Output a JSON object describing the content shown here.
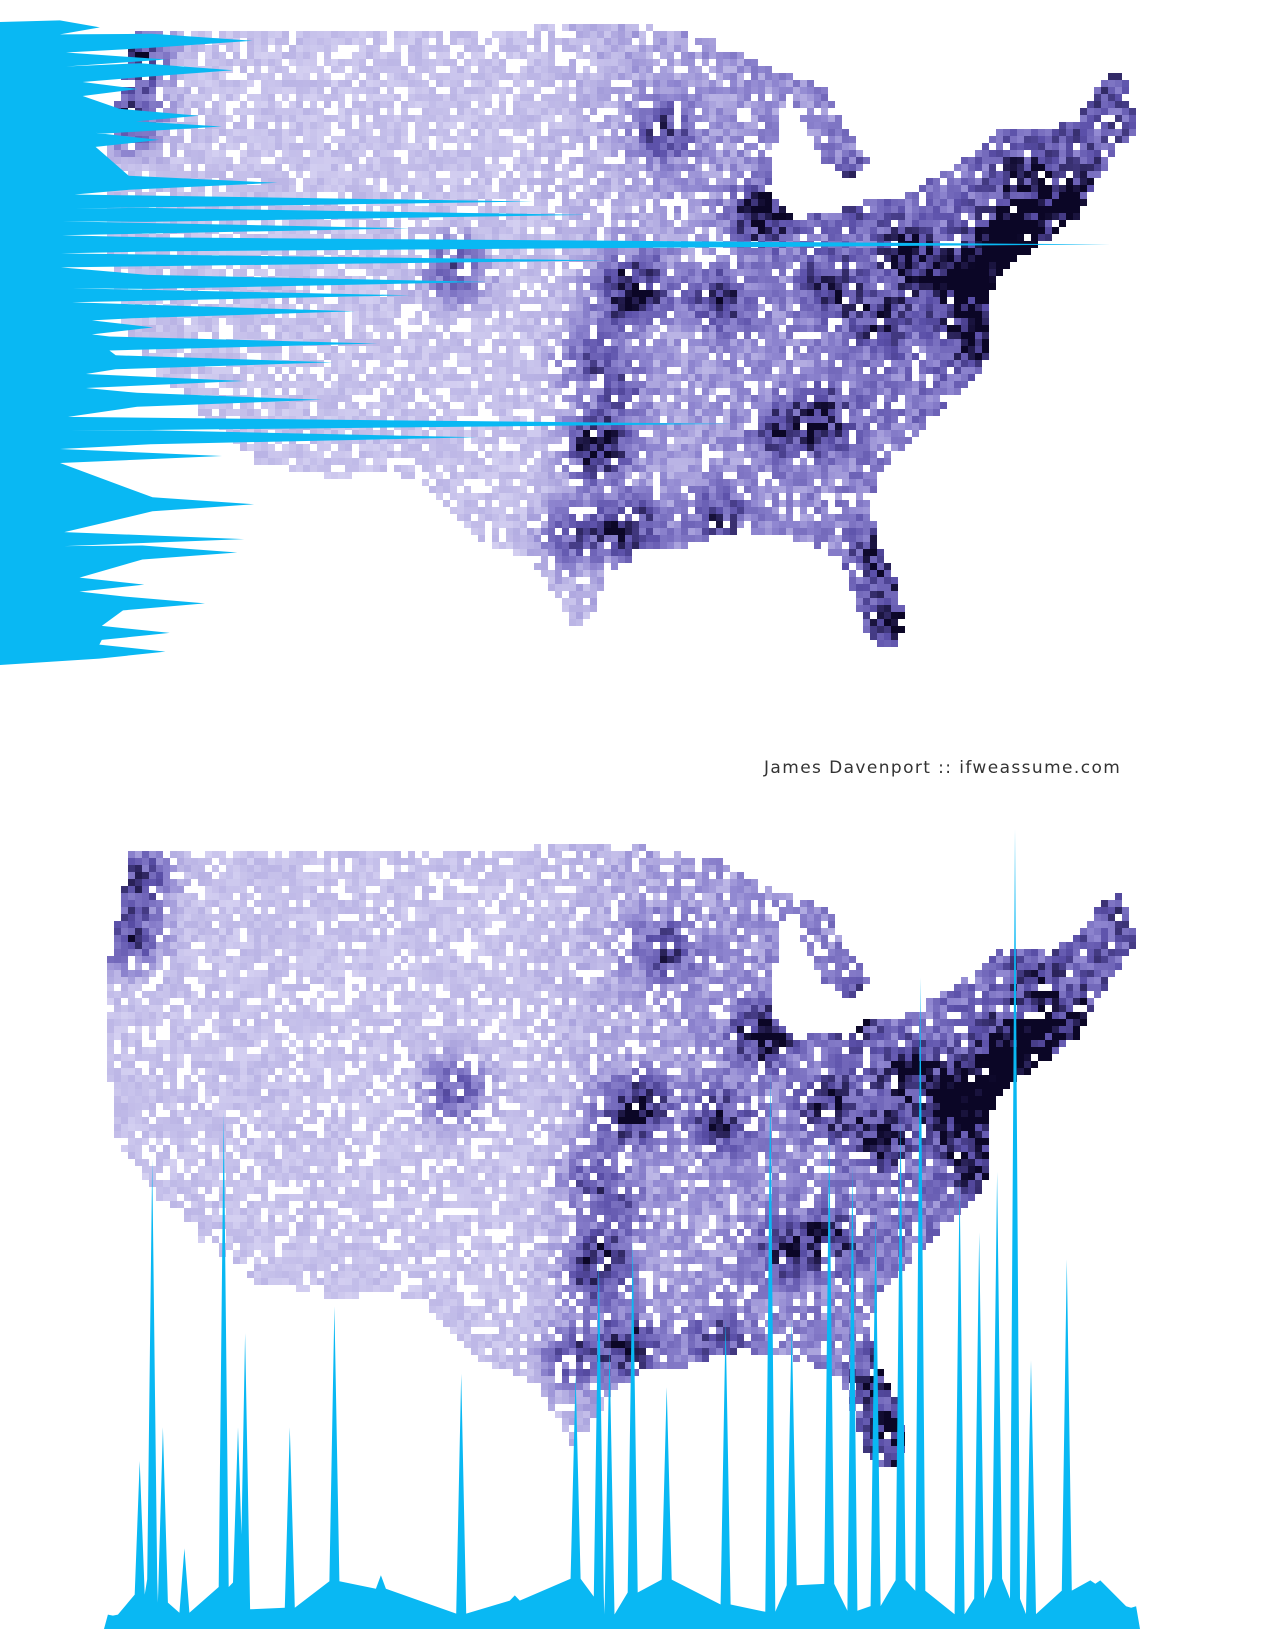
{
  "credit": "James Davenport :: ifweassume.com",
  "colors": {
    "profile_fill": "#09b8f3",
    "density_low": "#e4e1f9",
    "density_mid": "#8f86d0",
    "density_high": "#5a4fa8",
    "density_peak": "#0b0626",
    "background": "#ffffff"
  },
  "chart_data": [
    {
      "type": "area",
      "orientation": "horizontal",
      "description_of_marks": "population density summed along each latitude band, drawn from the left edge",
      "x_axis": "longitude",
      "y_axis": "latitude",
      "ylabel": "",
      "xlabel": "",
      "title": "",
      "ylim": [
        25,
        49
      ],
      "profile": [
        {
          "lat": 48.8,
          "value": 0.03
        },
        {
          "lat": 48.3,
          "value": 0.06
        },
        {
          "lat": 47.6,
          "value": 0.15
        },
        {
          "lat": 47.2,
          "value": 0.05
        },
        {
          "lat": 46.5,
          "value": 0.04
        },
        {
          "lat": 45.5,
          "value": 0.11
        },
        {
          "lat": 45.1,
          "value": 0.2
        },
        {
          "lat": 44.6,
          "value": 0.06
        },
        {
          "lat": 43.0,
          "value": 0.25
        },
        {
          "lat": 42.3,
          "value": 0.48
        },
        {
          "lat": 41.8,
          "value": 0.53
        },
        {
          "lat": 41.3,
          "value": 0.37
        },
        {
          "lat": 40.7,
          "value": 1.0
        },
        {
          "lat": 40.1,
          "value": 0.55
        },
        {
          "lat": 39.3,
          "value": 0.44
        },
        {
          "lat": 38.8,
          "value": 0.37
        },
        {
          "lat": 38.2,
          "value": 0.32
        },
        {
          "lat": 37.6,
          "value": 0.11
        },
        {
          "lat": 37.0,
          "value": 0.34
        },
        {
          "lat": 36.3,
          "value": 0.3
        },
        {
          "lat": 35.6,
          "value": 0.22
        },
        {
          "lat": 34.9,
          "value": 0.29
        },
        {
          "lat": 34.0,
          "value": 0.66
        },
        {
          "lat": 33.5,
          "value": 0.43
        },
        {
          "lat": 32.8,
          "value": 0.2
        },
        {
          "lat": 31.0,
          "value": 0.17
        },
        {
          "lat": 29.7,
          "value": 0.22
        },
        {
          "lat": 29.2,
          "value": 0.06
        },
        {
          "lat": 28.0,
          "value": 0.13
        },
        {
          "lat": 27.3,
          "value": 0.05
        },
        {
          "lat": 26.2,
          "value": 0.15
        },
        {
          "lat": 25.5,
          "value": 0.04
        }
      ]
    },
    {
      "type": "area",
      "orientation": "vertical",
      "description_of_marks": "population density summed along each longitude band, drawn up from the bottom edge",
      "x_axis": "longitude",
      "y_axis": "latitude",
      "ylabel": "",
      "xlabel": "",
      "title": "",
      "xlim": [
        -125,
        -67
      ],
      "profile": [
        {
          "lon": -124.5,
          "value": 0.02
        },
        {
          "lon": -123.0,
          "value": 0.25
        },
        {
          "lon": -122.3,
          "value": 0.7
        },
        {
          "lon": -121.7,
          "value": 0.3
        },
        {
          "lon": -120.5,
          "value": 0.12
        },
        {
          "lon": -118.3,
          "value": 0.77
        },
        {
          "lon": -117.5,
          "value": 0.3
        },
        {
          "lon": -117.1,
          "value": 0.44
        },
        {
          "lon": -114.6,
          "value": 0.3
        },
        {
          "lon": -112.1,
          "value": 0.48
        },
        {
          "lon": -109.5,
          "value": 0.08
        },
        {
          "lon": -105.0,
          "value": 0.38
        },
        {
          "lon": -102.0,
          "value": 0.05
        },
        {
          "lon": -98.6,
          "value": 0.38
        },
        {
          "lon": -97.3,
          "value": 0.55
        },
        {
          "lon": -96.7,
          "value": 0.42
        },
        {
          "lon": -95.4,
          "value": 0.58
        },
        {
          "lon": -93.5,
          "value": 0.36
        },
        {
          "lon": -90.2,
          "value": 0.46
        },
        {
          "lon": -87.7,
          "value": 0.83
        },
        {
          "lon": -86.5,
          "value": 0.46
        },
        {
          "lon": -84.4,
          "value": 0.74
        },
        {
          "lon": -83.1,
          "value": 0.69
        },
        {
          "lon": -81.8,
          "value": 0.62
        },
        {
          "lon": -80.4,
          "value": 0.76
        },
        {
          "lon": -79.3,
          "value": 0.97
        },
        {
          "lon": -77.1,
          "value": 0.67
        },
        {
          "lon": -76.0,
          "value": 0.59
        },
        {
          "lon": -75.0,
          "value": 0.68
        },
        {
          "lon": -74.0,
          "value": 1.0
        },
        {
          "lon": -73.1,
          "value": 0.4
        },
        {
          "lon": -71.1,
          "value": 0.55
        },
        {
          "lon": -69.5,
          "value": 0.04
        },
        {
          "lon": -67.5,
          "value": 0.01
        }
      ]
    }
  ]
}
